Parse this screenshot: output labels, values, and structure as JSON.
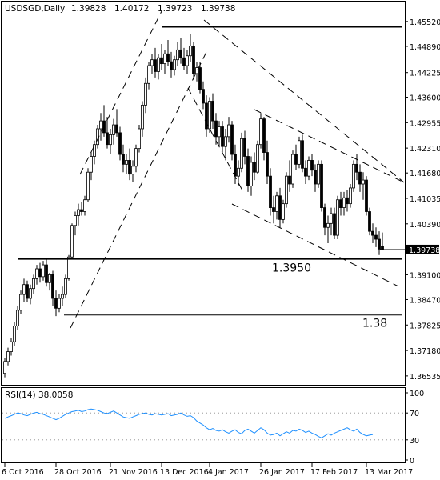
{
  "chart_data": [
    {
      "type": "candlestick",
      "title": "USDSGD,Daily",
      "ohlc_readout": [
        "1.39828",
        "1.40172",
        "1.39723",
        "1.39738"
      ],
      "y_ticks": [
        "1.45520",
        "1.44890",
        "1.44225",
        "1.43600",
        "1.42955",
        "1.42310",
        "1.41680",
        "1.41035",
        "1.40390",
        "1.39738",
        "1.39100",
        "1.38470",
        "1.37825",
        "1.37180",
        "1.36535"
      ],
      "ylim": [
        1.3635,
        1.4572
      ],
      "last_price": 1.39738,
      "x_ticks": [
        {
          "label": "6 Oct 2016",
          "bar": 0
        },
        {
          "label": "28 Oct 2016",
          "bar": 16
        },
        {
          "label": "21 Nov 2016",
          "bar": 33
        },
        {
          "label": "13 Dec 2016",
          "bar": 49
        },
        {
          "label": "4 Jan 2017",
          "bar": 64
        },
        {
          "label": "26 Jan 2017",
          "bar": 80
        },
        {
          "label": "17 Feb 2017",
          "bar": 96
        },
        {
          "label": "13 Mar 2017",
          "bar": 113
        }
      ],
      "bars": [
        [
          1.366,
          1.37,
          1.365,
          1.369
        ],
        [
          1.369,
          1.3725,
          1.368,
          1.3715
        ],
        [
          1.3715,
          1.375,
          1.3705,
          1.374
        ],
        [
          1.374,
          1.379,
          1.373,
          1.378
        ],
        [
          1.378,
          1.383,
          1.377,
          1.382
        ],
        [
          1.382,
          1.387,
          1.381,
          1.386
        ],
        [
          1.386,
          1.39,
          1.384,
          1.3885
        ],
        [
          1.3885,
          1.3895,
          1.384,
          1.385
        ],
        [
          1.385,
          1.3885,
          1.3835,
          1.3875
        ],
        [
          1.3875,
          1.391,
          1.386,
          1.39
        ],
        [
          1.39,
          1.3935,
          1.3885,
          1.3925
        ],
        [
          1.3925,
          1.394,
          1.389,
          1.3905
        ],
        [
          1.3905,
          1.3945,
          1.3895,
          1.3935
        ],
        [
          1.3935,
          1.395,
          1.388,
          1.389
        ],
        [
          1.389,
          1.3915,
          1.387,
          1.391
        ],
        [
          1.391,
          1.392,
          1.383,
          1.385
        ],
        [
          1.385,
          1.387,
          1.3805,
          1.3825
        ],
        [
          1.3825,
          1.386,
          1.3815,
          1.385
        ],
        [
          1.385,
          1.388,
          1.383,
          1.386
        ],
        [
          1.386,
          1.391,
          1.385,
          1.39
        ],
        [
          1.39,
          1.396,
          1.3895,
          1.3955
        ],
        [
          1.3955,
          1.404,
          1.395,
          1.4035
        ],
        [
          1.4035,
          1.407,
          1.401,
          1.406
        ],
        [
          1.406,
          1.409,
          1.4035,
          1.4075
        ],
        [
          1.4075,
          1.4095,
          1.406,
          1.407
        ],
        [
          1.407,
          1.411,
          1.406,
          1.41
        ],
        [
          1.41,
          1.418,
          1.4095,
          1.417
        ],
        [
          1.417,
          1.422,
          1.415,
          1.421
        ],
        [
          1.421,
          1.425,
          1.419,
          1.424
        ],
        [
          1.424,
          1.429,
          1.423,
          1.428
        ],
        [
          1.428,
          1.432,
          1.425,
          1.43
        ],
        [
          1.43,
          1.434,
          1.426,
          1.427
        ],
        [
          1.427,
          1.431,
          1.423,
          1.424
        ],
        [
          1.424,
          1.428,
          1.4215,
          1.4265
        ],
        [
          1.4265,
          1.4305,
          1.424,
          1.429
        ],
        [
          1.429,
          1.433,
          1.426,
          1.427
        ],
        [
          1.427,
          1.4285,
          1.42,
          1.4215
        ],
        [
          1.4215,
          1.424,
          1.417,
          1.419
        ],
        [
          1.419,
          1.4215,
          1.4165,
          1.42
        ],
        [
          1.42,
          1.423,
          1.415,
          1.4165
        ],
        [
          1.4165,
          1.42,
          1.4145,
          1.4185
        ],
        [
          1.4185,
          1.424,
          1.417,
          1.423
        ],
        [
          1.423,
          1.429,
          1.422,
          1.428
        ],
        [
          1.428,
          1.435,
          1.426,
          1.434
        ],
        [
          1.434,
          1.441,
          1.432,
          1.4395
        ],
        [
          1.4395,
          1.445,
          1.438,
          1.444
        ],
        [
          1.444,
          1.447,
          1.442,
          1.4455
        ],
        [
          1.4455,
          1.4485,
          1.441,
          1.4425
        ],
        [
          1.4425,
          1.447,
          1.4405,
          1.446
        ],
        [
          1.446,
          1.4495,
          1.443,
          1.4445
        ],
        [
          1.4445,
          1.448,
          1.442,
          1.447
        ],
        [
          1.447,
          1.4505,
          1.444,
          1.445
        ],
        [
          1.445,
          1.4475,
          1.441,
          1.443
        ],
        [
          1.443,
          1.4465,
          1.4415,
          1.4455
        ],
        [
          1.4455,
          1.45,
          1.444,
          1.448
        ],
        [
          1.448,
          1.451,
          1.4445,
          1.446
        ],
        [
          1.446,
          1.4485,
          1.443,
          1.444
        ],
        [
          1.444,
          1.448,
          1.442,
          1.4465
        ],
        [
          1.4465,
          1.452,
          1.445,
          1.449
        ],
        [
          1.449,
          1.45,
          1.4405,
          1.442
        ],
        [
          1.442,
          1.445,
          1.44,
          1.4435
        ],
        [
          1.4435,
          1.445,
          1.437,
          1.438
        ],
        [
          1.438,
          1.44,
          1.433,
          1.4345
        ],
        [
          1.4345,
          1.4365,
          1.426,
          1.428
        ],
        [
          1.428,
          1.436,
          1.427,
          1.435
        ],
        [
          1.435,
          1.437,
          1.428,
          1.43
        ],
        [
          1.43,
          1.432,
          1.424,
          1.426
        ],
        [
          1.426,
          1.43,
          1.4235,
          1.4285
        ],
        [
          1.4285,
          1.43,
          1.422,
          1.4235
        ],
        [
          1.4235,
          1.428,
          1.42,
          1.426
        ],
        [
          1.426,
          1.431,
          1.4245,
          1.429
        ],
        [
          1.429,
          1.43,
          1.42,
          1.4215
        ],
        [
          1.4215,
          1.424,
          1.414,
          1.416
        ],
        [
          1.416,
          1.42,
          1.4135,
          1.418
        ],
        [
          1.418,
          1.427,
          1.417,
          1.4255
        ],
        [
          1.4255,
          1.4275,
          1.419,
          1.421
        ],
        [
          1.421,
          1.423,
          1.412,
          1.4135
        ],
        [
          1.4135,
          1.421,
          1.411,
          1.4195
        ],
        [
          1.4195,
          1.422,
          1.415,
          1.417
        ],
        [
          1.417,
          1.425,
          1.4165,
          1.424
        ],
        [
          1.424,
          1.432,
          1.423,
          1.4305
        ],
        [
          1.4305,
          1.431,
          1.42,
          1.422
        ],
        [
          1.422,
          1.425,
          1.414,
          1.416
        ],
        [
          1.416,
          1.418,
          1.406,
          1.408
        ],
        [
          1.408,
          1.411,
          1.404,
          1.407
        ],
        [
          1.407,
          1.412,
          1.405,
          1.411
        ],
        [
          1.411,
          1.413,
          1.403,
          1.405
        ],
        [
          1.405,
          1.41,
          1.404,
          1.409
        ],
        [
          1.409,
          1.417,
          1.408,
          1.416
        ],
        [
          1.416,
          1.42,
          1.412,
          1.414
        ],
        [
          1.414,
          1.4225,
          1.413,
          1.4215
        ],
        [
          1.4215,
          1.424,
          1.4175,
          1.419
        ],
        [
          1.419,
          1.426,
          1.418,
          1.425
        ],
        [
          1.425,
          1.4265,
          1.417,
          1.418
        ],
        [
          1.418,
          1.42,
          1.414,
          1.416
        ],
        [
          1.416,
          1.421,
          1.415,
          1.42
        ],
        [
          1.42,
          1.4215,
          1.416,
          1.4175
        ],
        [
          1.4175,
          1.419,
          1.412,
          1.414
        ],
        [
          1.414,
          1.42,
          1.413,
          1.419
        ],
        [
          1.419,
          1.42,
          1.407,
          1.408
        ],
        [
          1.408,
          1.409,
          1.401,
          1.403
        ],
        [
          1.403,
          1.406,
          1.399,
          1.404
        ],
        [
          1.404,
          1.408,
          1.401,
          1.4065
        ],
        [
          1.4065,
          1.408,
          1.4,
          1.401
        ],
        [
          1.401,
          1.411,
          1.4,
          1.41
        ],
        [
          1.41,
          1.412,
          1.406,
          1.408
        ],
        [
          1.408,
          1.412,
          1.406,
          1.4105
        ],
        [
          1.4105,
          1.4125,
          1.407,
          1.409
        ],
        [
          1.409,
          1.414,
          1.408,
          1.413
        ],
        [
          1.413,
          1.42,
          1.412,
          1.419
        ],
        [
          1.419,
          1.4215,
          1.415,
          1.417
        ],
        [
          1.417,
          1.419,
          1.412,
          1.414
        ],
        [
          1.414,
          1.417,
          1.41,
          1.415
        ],
        [
          1.415,
          1.416,
          1.406,
          1.407
        ],
        [
          1.407,
          1.408,
          1.401,
          1.402
        ],
        [
          1.402,
          1.404,
          1.399,
          1.401
        ],
        [
          1.401,
          1.403,
          1.398,
          1.4
        ],
        [
          1.4,
          1.402,
          1.396,
          1.3975
        ],
        [
          1.3983,
          1.4017,
          1.3972,
          1.3974
        ]
      ],
      "lines": {
        "upper_horizontal": 1.4538,
        "support_line": 1.395,
        "support_label": "1.3950",
        "lower_horizontal": 1.3808,
        "lower_label": "1.38"
      }
    },
    {
      "type": "line",
      "title": "RSI(14) 38.0058",
      "y_ticks": [
        "100",
        "70",
        "30",
        "0"
      ],
      "levels": [
        70,
        30
      ],
      "ylim": [
        0,
        100
      ],
      "values": [
        62,
        64,
        66,
        68,
        70,
        69,
        67,
        66,
        68,
        70,
        71,
        69,
        68,
        66,
        64,
        62,
        60,
        62,
        65,
        68,
        70,
        72,
        73,
        74,
        72,
        73,
        75,
        76,
        75,
        74,
        72,
        70,
        69,
        71,
        73,
        70,
        67,
        64,
        63,
        62,
        64,
        66,
        68,
        69,
        70,
        68,
        67,
        69,
        68,
        67,
        68,
        69,
        66,
        67,
        68,
        70,
        67,
        65,
        66,
        63,
        58,
        55,
        52,
        48,
        45,
        47,
        44,
        43,
        45,
        42,
        40,
        43,
        45,
        41,
        39,
        44,
        46,
        43,
        40,
        44,
        48,
        45,
        40,
        37,
        38,
        40,
        36,
        39,
        42,
        40,
        44,
        43,
        46,
        44,
        41,
        43,
        40,
        38,
        35,
        33,
        36,
        39,
        37,
        40,
        42,
        44,
        46,
        48,
        45,
        43,
        46,
        41,
        38,
        36,
        37,
        38
      ]
    }
  ]
}
